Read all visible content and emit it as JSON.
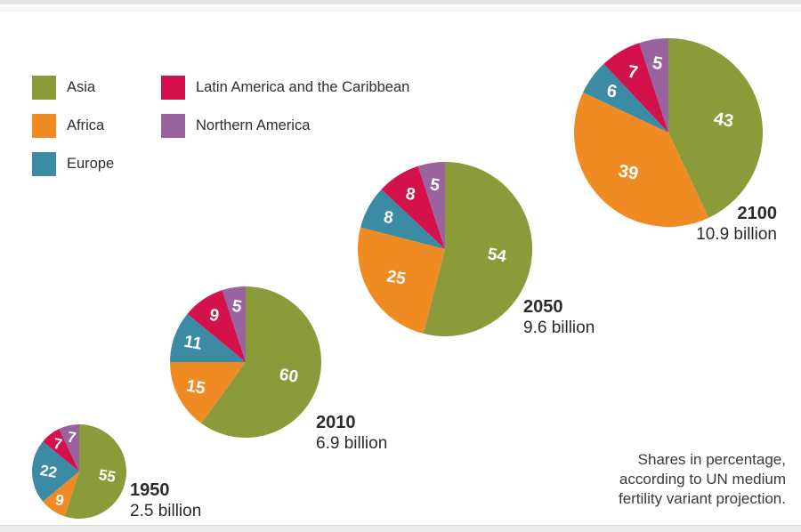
{
  "legend": {
    "items": [
      {
        "label": "Asia",
        "color": "asia"
      },
      {
        "label": "Africa",
        "color": "africa"
      },
      {
        "label": "Europe",
        "color": "europe"
      },
      {
        "label": "Latin America and the Caribbean",
        "color": "latam"
      },
      {
        "label": "Northern America",
        "color": "northam"
      }
    ]
  },
  "colors": {
    "asia": "#8c9b3a",
    "africa": "#ef8b22",
    "europe": "#3c8ba5",
    "latam": "#d3114a",
    "northam": "#99639f"
  },
  "chart_data": {
    "type": "pie",
    "unit": "percent",
    "legend_position": "top-left",
    "categories": [
      "Asia",
      "Africa",
      "Europe",
      "Latin America and the Caribbean",
      "Northern America"
    ],
    "pies": [
      {
        "title": "1950",
        "subtitle": "2.5 billion",
        "values": [
          55,
          9,
          22,
          7,
          7
        ]
      },
      {
        "title": "2010",
        "subtitle": "6.9 billion",
        "values": [
          60,
          15,
          11,
          9,
          5
        ]
      },
      {
        "title": "2050",
        "subtitle": "9.6 billion",
        "values": [
          54,
          25,
          8,
          8,
          5
        ]
      },
      {
        "title": "2100",
        "subtitle": "10.9 billion",
        "values": [
          43,
          39,
          6,
          7,
          5
        ]
      }
    ]
  },
  "footnote": {
    "lines": [
      "Shares in percentage,",
      "according to UN medium",
      "fertility variant projection."
    ]
  }
}
